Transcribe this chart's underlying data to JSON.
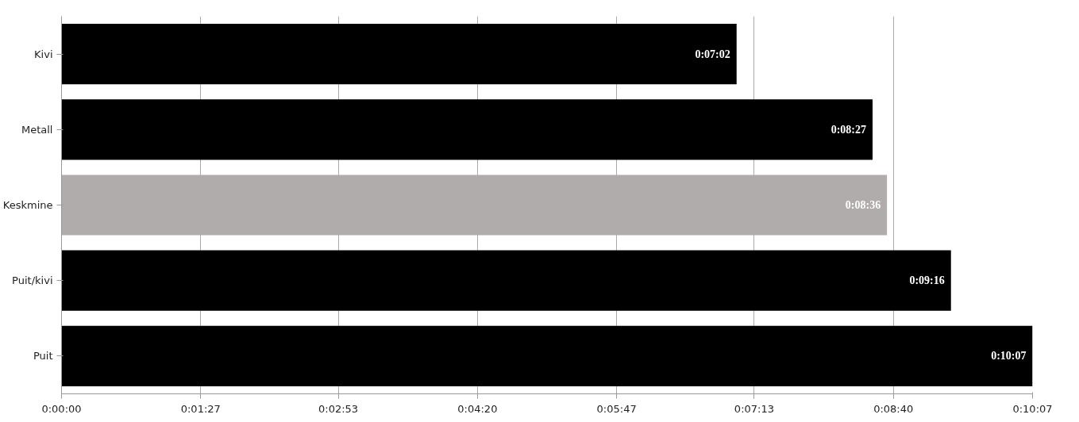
{
  "chart_data": {
    "type": "bar",
    "orientation": "horizontal",
    "categories": [
      "Kivi",
      "Metall",
      "Keskmine",
      "Puit/kivi",
      "Puit"
    ],
    "values": [
      422,
      507,
      516,
      556,
      607
    ],
    "colors": [
      "#000000",
      "#000000",
      "#b0acab",
      "#000000",
      "#000000"
    ],
    "value_labels": [
      "0:07:02",
      "0:08:27",
      "0:08:36",
      "0:09:16",
      "0:10:07"
    ],
    "xlim": [
      0,
      607
    ],
    "xticks": [
      {
        "value": 0,
        "label": "0:00:00"
      },
      {
        "value": 87,
        "label": "0:01:27"
      },
      {
        "value": 173,
        "label": "0:02:53"
      },
      {
        "value": 260,
        "label": "0:04:20"
      },
      {
        "value": 347,
        "label": "0:05:47"
      },
      {
        "value": 433,
        "label": "0:07:13"
      },
      {
        "value": 520,
        "label": "0:08:40"
      },
      {
        "value": 607,
        "label": "0:10:07"
      }
    ],
    "grid": "x"
  }
}
